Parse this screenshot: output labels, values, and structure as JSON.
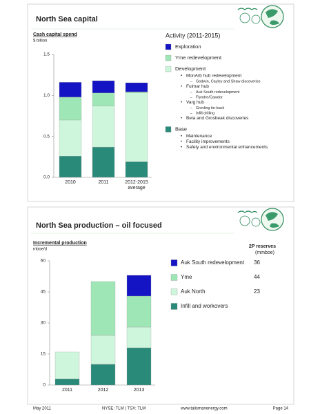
{
  "slides": [
    {
      "title": "North Sea capital"
    },
    {
      "title": "North Sea production – oil focused"
    }
  ],
  "footer": {
    "date": "May 2011",
    "ticker": "NYSE: TLM | TSX: TLM",
    "website": "www.talismanenergy.com",
    "page": "Page 14"
  },
  "chart_data": [
    {
      "type": "bar",
      "stacked": true,
      "title": "Cash capital spend",
      "subtitle": "$ billion",
      "legend_title": "Activity (2011-2015)",
      "categories": [
        "2010",
        "2011",
        "2012-2015 average"
      ],
      "ylim": [
        0,
        1.5
      ],
      "yticks": [
        {
          "value": 0,
          "label": "0.0"
        },
        {
          "value": 0.5,
          "label": "0.5"
        },
        {
          "value": 1,
          "label": "1.0"
        },
        {
          "value": 1.5,
          "label": "1.5"
        }
      ],
      "series": [
        {
          "name": "Exploration",
          "color": "#1414c4",
          "values": [
            0.18,
            0.15,
            0.11
          ]
        },
        {
          "name": "Yme redevelopment",
          "color": "#9fe6b6",
          "values": [
            0.28,
            0.16,
            0.015
          ]
        },
        {
          "name": "Development",
          "color": "#cdf6dc",
          "values": [
            0.44,
            0.5,
            0.84
          ],
          "items": [
            {
              "text": "MonArb hub redevelopment",
              "sub": [
                "Godwin, Cayley and Shaw discoveries"
              ]
            },
            {
              "text": "Fulmar hub",
              "sub": [
                "Auk South redevelopment",
                "Flyndre/Cawdor"
              ]
            },
            {
              "text": "Varg hub",
              "sub": [
                "Grevling tie-back",
                "Infill drilling"
              ]
            },
            {
              "text": "Beta and Grosbeak discoveries",
              "sub": []
            }
          ]
        },
        {
          "name": "Base",
          "color": "#2a8a7a",
          "values": [
            0.26,
            0.37,
            0.19
          ],
          "items": [
            {
              "text": "Maintenance",
              "sub": []
            },
            {
              "text": "Facility improvements",
              "sub": []
            },
            {
              "text": "Safety and environmental enhancements",
              "sub": []
            }
          ]
        }
      ]
    },
    {
      "type": "bar",
      "stacked": true,
      "title": "Incremental production",
      "subtitle": "mboe/d",
      "reserves_title": "2P reserves",
      "reserves_unit": "(mmboe)",
      "categories": [
        "2011",
        "2012",
        "2013"
      ],
      "ylim": [
        0,
        60
      ],
      "yticks": [
        0,
        15,
        30,
        45,
        60
      ],
      "series": [
        {
          "name": "Auk South redevelopment",
          "color": "#1414c4",
          "values": [
            null,
            null,
            10
          ],
          "reserves": 36
        },
        {
          "name": "Yme",
          "color": "#9fe6b6",
          "values": [
            null,
            26,
            15
          ],
          "reserves": 44
        },
        {
          "name": "Auk North",
          "color": "#cdf6dc",
          "values": [
            13,
            14,
            10
          ],
          "reserves": 23
        },
        {
          "name": "Infill and workovers",
          "color": "#2a8a7a",
          "values": [
            3,
            10,
            18
          ]
        }
      ]
    }
  ]
}
